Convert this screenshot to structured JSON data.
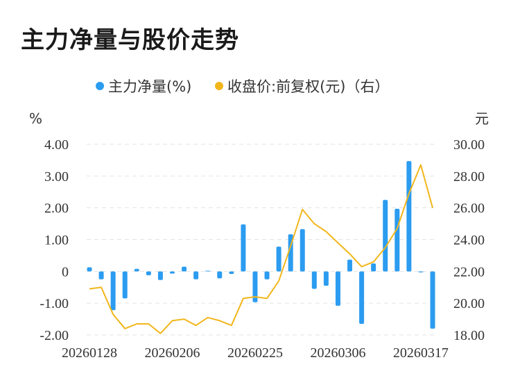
{
  "chart_data": {
    "type": "bar+line",
    "title": "主力净量与股价走势",
    "left_axis_unit": "%",
    "right_axis_unit": "元",
    "left_ticks": [
      "4.00",
      "3.00",
      "2.00",
      "1.00",
      "0",
      "-1.00",
      "-2.00"
    ],
    "right_ticks": [
      "30.00",
      "28.00",
      "26.00",
      "24.00",
      "22.00",
      "20.00",
      "18.00"
    ],
    "ylim_left": [
      -2,
      4
    ],
    "ylim_right": [
      18,
      30
    ],
    "x_labels": [
      "20260128",
      "20260206",
      "20260225",
      "20260306",
      "20260317"
    ],
    "legend": [
      "主力净量(%)",
      "收盘价:前复权(元)（右）"
    ],
    "colors": {
      "bar": "#2b9cf0",
      "line": "#f2b61c",
      "grid": "#e3e3e3"
    },
    "series": [
      {
        "name": "主力净量(%)",
        "type": "bar",
        "values": [
          0.13,
          -0.25,
          -1.22,
          -0.85,
          0.08,
          -0.12,
          -0.27,
          -0.07,
          0.15,
          -0.25,
          0.02,
          -0.22,
          -0.08,
          1.48,
          -0.97,
          -0.25,
          0.78,
          1.17,
          1.33,
          -0.55,
          -0.45,
          -1.08,
          0.37,
          -1.65,
          0.25,
          2.25,
          1.97,
          3.47,
          -0.03,
          -1.8
        ]
      },
      {
        "name": "收盘价:前复权(元)（右）",
        "type": "line",
        "values": [
          20.9,
          21.0,
          19.3,
          18.4,
          18.7,
          18.7,
          18.1,
          18.9,
          19.0,
          18.6,
          19.1,
          18.9,
          18.6,
          20.3,
          20.4,
          20.3,
          21.4,
          23.6,
          25.9,
          25.0,
          24.5,
          23.8,
          23.1,
          22.3,
          22.6,
          23.5,
          24.7,
          26.9,
          28.7,
          26.0
        ]
      }
    ]
  }
}
